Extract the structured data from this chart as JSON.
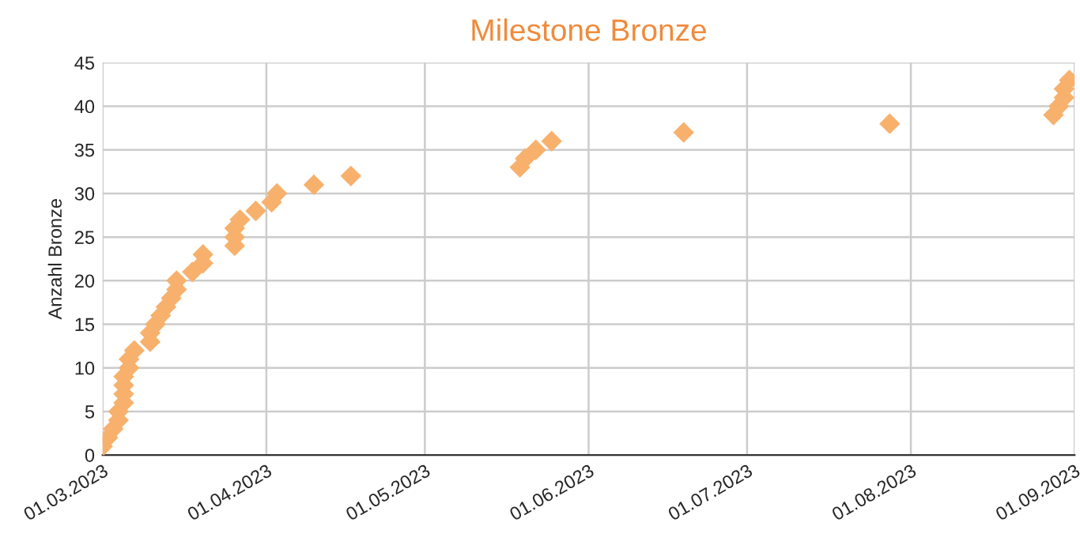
{
  "chart_data": {
    "type": "scatter",
    "title": "Milestone Bronze",
    "ylabel": "Anzahl Bronze",
    "x": [
      "2023-03-01",
      "2023-03-02",
      "2023-03-03",
      "2023-03-04",
      "2023-03-04",
      "2023-03-05",
      "2023-03-05",
      "2023-03-05",
      "2023-03-05",
      "2023-03-06",
      "2023-03-06",
      "2023-03-07",
      "2023-03-10",
      "2023-03-10",
      "2023-03-11",
      "2023-03-12",
      "2023-03-13",
      "2023-03-14",
      "2023-03-15",
      "2023-03-15",
      "2023-03-18",
      "2023-03-20",
      "2023-03-20",
      "2023-03-26",
      "2023-03-26",
      "2023-03-26",
      "2023-03-27",
      "2023-03-30",
      "2023-04-02",
      "2023-04-03",
      "2023-04-10",
      "2023-04-17",
      "2023-05-19",
      "2023-05-20",
      "2023-05-22",
      "2023-05-25",
      "2023-06-19",
      "2023-07-28",
      "2023-08-28",
      "2023-08-29",
      "2023-08-30",
      "2023-08-30",
      "2023-08-31"
    ],
    "series": [
      {
        "color": "#f7b16d",
        "values": [
          1,
          2,
          3,
          4,
          5,
          6,
          7,
          8,
          9,
          10,
          11,
          12,
          13,
          14,
          15,
          16,
          17,
          18,
          19,
          20,
          21,
          22,
          23,
          24,
          25,
          26,
          27,
          28,
          29,
          30,
          31,
          32,
          33,
          34,
          35,
          36,
          37,
          38,
          39,
          40,
          41,
          42,
          43
        ]
      }
    ],
    "marker": "diamond",
    "grid": true,
    "legend": false,
    "xlim": [
      "2023-03-01",
      "2023-09-01"
    ],
    "xticks": [
      {
        "value": "2023-03-01",
        "label": "01.03.2023"
      },
      {
        "value": "2023-04-01",
        "label": "01.04.2023"
      },
      {
        "value": "2023-05-01",
        "label": "01.05.2023"
      },
      {
        "value": "2023-06-01",
        "label": "01.06.2023"
      },
      {
        "value": "2023-07-01",
        "label": "01.07.2023"
      },
      {
        "value": "2023-08-01",
        "label": "01.08.2023"
      },
      {
        "value": "2023-09-01",
        "label": "01.09.2023"
      }
    ],
    "ylim": [
      0,
      45
    ],
    "yticks": [
      0,
      5,
      10,
      15,
      20,
      25,
      30,
      35,
      40,
      45
    ]
  }
}
